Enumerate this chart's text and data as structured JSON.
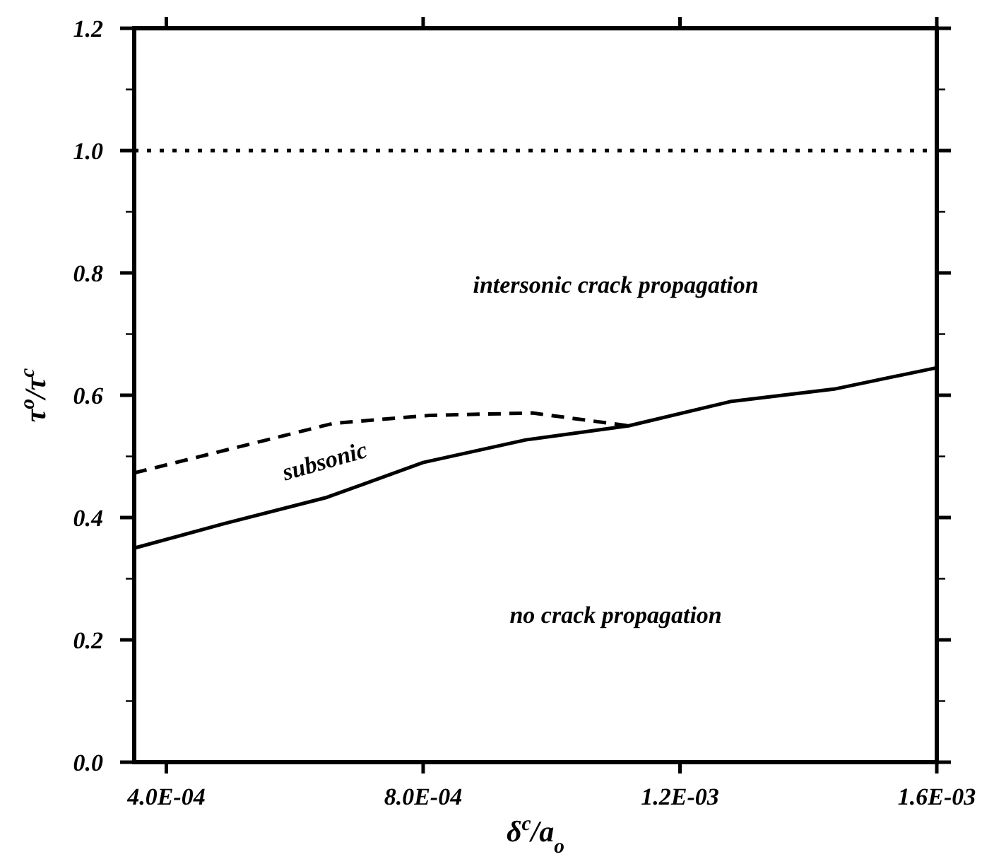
{
  "chart_data": {
    "type": "line",
    "xlabel": "δ$^{c}$/a$_{o}$",
    "ylabel": "τ$^{o}$/τ$^{c}$",
    "xlim": [
      0.00035,
      0.0016
    ],
    "xticks": [
      {
        "value": 0.0004,
        "label": "4.0E-04"
      },
      {
        "value": 0.0008,
        "label": "8.0E-04"
      },
      {
        "value": 0.0012,
        "label": "1.2E-03"
      },
      {
        "value": 0.0016,
        "label": "1.6E-03"
      }
    ],
    "ylim": [
      0,
      1.2
    ],
    "yticks": [
      {
        "value": 0,
        "label": "0.0"
      },
      {
        "value": 0.2,
        "label": "0.2"
      },
      {
        "value": 0.4,
        "label": "0.4"
      },
      {
        "value": 0.6,
        "label": "0.6"
      },
      {
        "value": 0.8,
        "label": "0.8"
      },
      {
        "value": 1,
        "label": "1.0"
      },
      {
        "value": 1.2,
        "label": "1.2"
      }
    ],
    "series": [
      {
        "color": "#000000",
        "line_style": "solid",
        "x": [
          0.00035,
          0.00049,
          0.00065,
          0.0008,
          0.00096,
          0.00112,
          0.00128,
          0.00144,
          0.0016
        ],
        "values": [
          0.35,
          0.39,
          0.433,
          0.49,
          0.527,
          0.55,
          0.59,
          0.61,
          0.645
        ]
      },
      {
        "color": "#000000",
        "line_style": "dashed",
        "x": [
          0.00035,
          0.00066,
          0.00081,
          0.00097,
          0.00112
        ],
        "values": [
          0.473,
          0.554,
          0.567,
          0.571,
          0.55
        ]
      }
    ],
    "ref_lines": [
      {
        "axis": "y",
        "value": 1.0,
        "line_style": "dotted",
        "color": "#000000"
      }
    ],
    "annotations": [
      "intersonic crack propagation",
      "subsonic",
      "no crack propagation"
    ]
  }
}
